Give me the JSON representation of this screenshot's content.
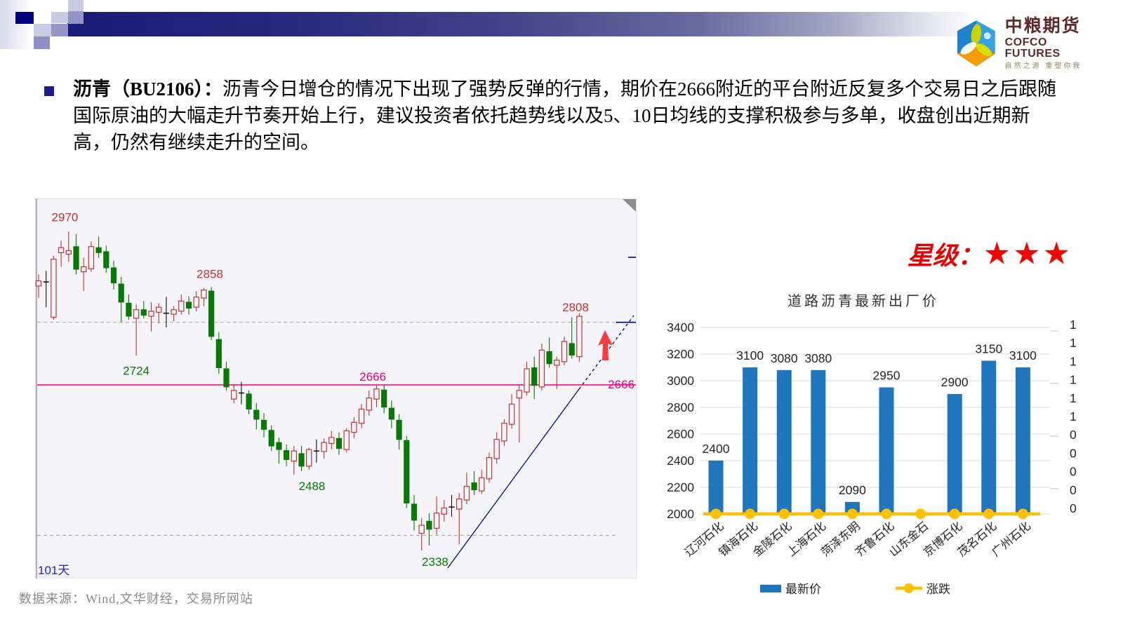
{
  "logo": {
    "brand_cn": "中粮期货",
    "brand_en": "COFCO FUTURES",
    "tagline": "自然之源 重塑你我"
  },
  "commentary": {
    "bold": "沥青（BU2106）：",
    "body": "沥青今日增仓的情况下出现了强势反弹的行情，期价在2666附近的平台附近反复多个交易日之后跟随国际原油的大幅走升节奏开始上行，建议投资者依托趋势线以及5、10日均线的支撑积极参与多单，收盘创出近期新高，仍然有继续走升的空间。"
  },
  "rating": {
    "label": "星级：",
    "stars": "★★★"
  },
  "source": {
    "text": "数据来源：Wind,文华财经，交易所网站"
  },
  "chart_data": [
    {
      "type": "candlestick",
      "period_label": "101天",
      "colors": {
        "up": "#c43232",
        "down": "#067806",
        "neutral": "#111111",
        "level": "#e6007e",
        "trend": "#000080",
        "dash": "#aaaaaa",
        "bg": "#f5f5f9",
        "arrow": "#f83b44"
      },
      "level_line": {
        "price": 2666,
        "label": "2666"
      },
      "dashed_levels": [
        2790,
        2368
      ],
      "annotations": [
        {
          "text": "2970",
          "idx": 3.5,
          "price": 2990,
          "color": "#c43232"
        },
        {
          "text": "2724",
          "idx": 13,
          "price": 2686,
          "color": "#067806"
        },
        {
          "text": "2858",
          "idx": 22.8,
          "price": 2878,
          "color": "#c43232"
        },
        {
          "text": "2488",
          "idx": 36.4,
          "price": 2458,
          "color": "#067806"
        },
        {
          "text": "2666",
          "idx": 44.5,
          "price": 2674,
          "color": "#e6007e"
        },
        {
          "text": "2338",
          "idx": 52.8,
          "price": 2308,
          "color": "#067806"
        },
        {
          "text": "2808",
          "idx": 71.5,
          "price": 2812,
          "color": "#c43232"
        }
      ],
      "trend": {
        "solid": [
          [
            588,
            527
          ],
          [
            775,
            272
          ]
        ],
        "dashed": [
          [
            775,
            272
          ],
          [
            853,
            167
          ]
        ]
      },
      "candles_ohlc": [
        [
          2862,
          2885,
          2838,
          2872
        ],
        [
          2870,
          2892,
          2820,
          2870
        ],
        [
          2800,
          2922,
          2795,
          2915
        ],
        [
          2928,
          2952,
          2900,
          2938
        ],
        [
          2925,
          2970,
          2910,
          2932
        ],
        [
          2940,
          2965,
          2885,
          2895
        ],
        [
          2890,
          2918,
          2852,
          2900
        ],
        [
          2896,
          2950,
          2890,
          2940
        ],
        [
          2938,
          2960,
          2918,
          2928
        ],
        [
          2930,
          2942,
          2888,
          2898
        ],
        [
          2898,
          2912,
          2855,
          2868
        ],
        [
          2866,
          2880,
          2790,
          2830
        ],
        [
          2828,
          2845,
          2795,
          2802
        ],
        [
          2798,
          2825,
          2724,
          2815
        ],
        [
          2815,
          2832,
          2798,
          2804
        ],
        [
          2802,
          2830,
          2772,
          2812
        ],
        [
          2810,
          2828,
          2788,
          2820
        ],
        [
          2808,
          2840,
          2780,
          2808
        ],
        [
          2806,
          2822,
          2792,
          2815
        ],
        [
          2812,
          2845,
          2805,
          2832
        ],
        [
          2830,
          2842,
          2805,
          2818
        ],
        [
          2820,
          2852,
          2812,
          2840
        ],
        [
          2838,
          2858,
          2822,
          2854
        ],
        [
          2852,
          2860,
          2755,
          2762
        ],
        [
          2756,
          2770,
          2688,
          2700
        ],
        [
          2698,
          2712,
          2655,
          2662
        ],
        [
          2638,
          2668,
          2630,
          2655
        ],
        [
          2650,
          2672,
          2628,
          2650
        ],
        [
          2648,
          2655,
          2608,
          2618
        ],
        [
          2616,
          2630,
          2578,
          2598
        ],
        [
          2596,
          2610,
          2562,
          2578
        ],
        [
          2576,
          2586,
          2535,
          2545
        ],
        [
          2552,
          2562,
          2510,
          2538
        ],
        [
          2536,
          2548,
          2505,
          2518
        ],
        [
          2515,
          2545,
          2488,
          2535
        ],
        [
          2530,
          2545,
          2495,
          2505
        ],
        [
          2505,
          2542,
          2498,
          2538
        ],
        [
          2535,
          2558,
          2512,
          2535
        ],
        [
          2534,
          2560,
          2520,
          2552
        ],
        [
          2550,
          2575,
          2538,
          2562
        ],
        [
          2560,
          2572,
          2528,
          2540
        ],
        [
          2538,
          2580,
          2532,
          2575
        ],
        [
          2572,
          2602,
          2560,
          2592
        ],
        [
          2590,
          2628,
          2580,
          2618
        ],
        [
          2616,
          2655,
          2605,
          2640
        ],
        [
          2638,
          2666,
          2622,
          2658
        ],
        [
          2656,
          2665,
          2610,
          2622
        ],
        [
          2620,
          2635,
          2580,
          2598
        ],
        [
          2596,
          2608,
          2538,
          2558
        ],
        [
          2556,
          2565,
          2422,
          2432
        ],
        [
          2430,
          2448,
          2378,
          2398
        ],
        [
          2372,
          2402,
          2338,
          2388
        ],
        [
          2396,
          2412,
          2348,
          2380
        ],
        [
          2382,
          2445,
          2370,
          2412
        ],
        [
          2410,
          2438,
          2395,
          2422
        ],
        [
          2424,
          2448,
          2405,
          2424
        ],
        [
          2420,
          2452,
          2350,
          2440
        ],
        [
          2438,
          2492,
          2430,
          2465
        ],
        [
          2472,
          2495,
          2448,
          2458
        ],
        [
          2456,
          2498,
          2450,
          2482
        ],
        [
          2480,
          2532,
          2472,
          2522
        ],
        [
          2520,
          2572,
          2510,
          2558
        ],
        [
          2555,
          2598,
          2545,
          2590
        ],
        [
          2588,
          2648,
          2580,
          2628
        ],
        [
          2640,
          2665,
          2552,
          2655
        ],
        [
          2652,
          2712,
          2645,
          2698
        ],
        [
          2700,
          2722,
          2638,
          2665
        ],
        [
          2662,
          2748,
          2655,
          2735
        ],
        [
          2732,
          2760,
          2700,
          2708
        ],
        [
          2705,
          2722,
          2658,
          2715
        ],
        [
          2712,
          2762,
          2705,
          2752
        ],
        [
          2748,
          2800,
          2718,
          2725
        ],
        [
          2722,
          2808,
          2712,
          2802
        ]
      ]
    },
    {
      "type": "bar",
      "title": "道路沥青最新出厂价",
      "categories": [
        "辽河石化",
        "镇海石化",
        "金陵石化",
        "上海石化",
        "菏泽东明",
        "齐鲁石化",
        "山东金石",
        "京博石化",
        "茂名石化",
        "广州石化"
      ],
      "series": [
        {
          "name": "最新价",
          "type": "bar",
          "color": "#2076bc",
          "values": [
            2400,
            3100,
            3080,
            3080,
            2090,
            2950,
            null,
            2900,
            3150,
            3100
          ]
        },
        {
          "name": "涨跌",
          "type": "line",
          "color": "#ffc000",
          "values": [
            0,
            0,
            0,
            0,
            0,
            0,
            0,
            0,
            0,
            0
          ]
        }
      ],
      "ylim": [
        2000,
        3400
      ],
      "y_ticks": [
        2000,
        2200,
        2400,
        2600,
        2800,
        3000,
        3200,
        3400
      ],
      "y_right_labels": [
        "1",
        "1",
        "1",
        "1",
        "1",
        "1",
        "0",
        "0",
        "0",
        "0",
        "0"
      ],
      "grid": true,
      "legend_position": "bottom"
    }
  ]
}
